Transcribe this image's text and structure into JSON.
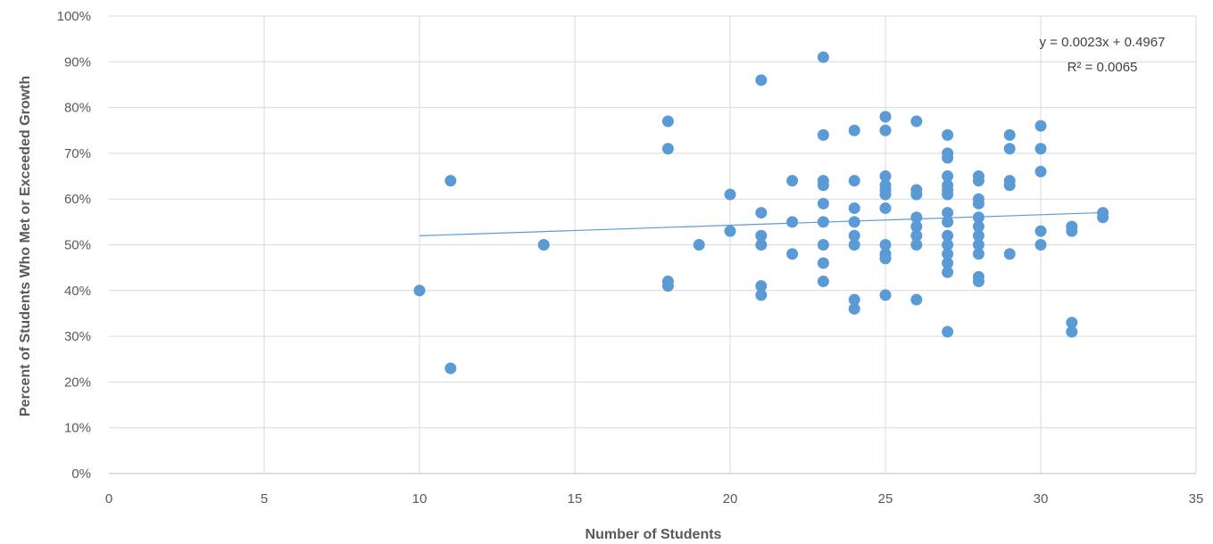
{
  "chart_data": {
    "type": "scatter",
    "title": "",
    "xlabel": "Number of Students",
    "ylabel": "Percent of Students Who Met or Exceeded Growth",
    "xlim": [
      0,
      35
    ],
    "ylim": [
      0,
      1
    ],
    "x_ticks": [
      0,
      5,
      10,
      15,
      20,
      25,
      30,
      35
    ],
    "x_tick_labels": [
      "0",
      "5",
      "10",
      "15",
      "20",
      "25",
      "30",
      "35"
    ],
    "y_ticks": [
      0,
      0.1,
      0.2,
      0.3,
      0.4,
      0.5,
      0.6,
      0.7,
      0.8,
      0.9,
      1.0
    ],
    "y_tick_labels": [
      "0%",
      "10%",
      "20%",
      "30%",
      "40%",
      "50%",
      "60%",
      "70%",
      "80%",
      "90%",
      "100%"
    ],
    "grid": true,
    "legend": "none",
    "marker_color": "#5b9bd5",
    "trendline": {
      "type": "linear",
      "slope": 0.0023,
      "intercept": 0.4967,
      "x_range": [
        10,
        32
      ],
      "equation": "y = 0.0023x + 0.4967",
      "r_squared": "R² = 0.0065"
    },
    "series": [
      {
        "points": [
          [
            10,
            0.4
          ],
          [
            11,
            0.64
          ],
          [
            11,
            0.23
          ],
          [
            14,
            0.5
          ],
          [
            18,
            0.77
          ],
          [
            18,
            0.71
          ],
          [
            18,
            0.42
          ],
          [
            18,
            0.41
          ],
          [
            19,
            0.5
          ],
          [
            20,
            0.61
          ],
          [
            20,
            0.53
          ],
          [
            21,
            0.86
          ],
          [
            21,
            0.57
          ],
          [
            21,
            0.52
          ],
          [
            21,
            0.5
          ],
          [
            21,
            0.41
          ],
          [
            21,
            0.39
          ],
          [
            22,
            0.64
          ],
          [
            22,
            0.55
          ],
          [
            22,
            0.48
          ],
          [
            23,
            0.91
          ],
          [
            23,
            0.74
          ],
          [
            23,
            0.64
          ],
          [
            23,
            0.63
          ],
          [
            23,
            0.59
          ],
          [
            23,
            0.55
          ],
          [
            23,
            0.5
          ],
          [
            23,
            0.46
          ],
          [
            23,
            0.42
          ],
          [
            24,
            0.75
          ],
          [
            24,
            0.64
          ],
          [
            24,
            0.58
          ],
          [
            24,
            0.55
          ],
          [
            24,
            0.52
          ],
          [
            24,
            0.5
          ],
          [
            24,
            0.38
          ],
          [
            24,
            0.36
          ],
          [
            25,
            0.78
          ],
          [
            25,
            0.75
          ],
          [
            25,
            0.65
          ],
          [
            25,
            0.63
          ],
          [
            25,
            0.62
          ],
          [
            25,
            0.61
          ],
          [
            25,
            0.58
          ],
          [
            25,
            0.5
          ],
          [
            25,
            0.48
          ],
          [
            25,
            0.47
          ],
          [
            25,
            0.39
          ],
          [
            26,
            0.77
          ],
          [
            26,
            0.62
          ],
          [
            26,
            0.61
          ],
          [
            26,
            0.56
          ],
          [
            26,
            0.54
          ],
          [
            26,
            0.52
          ],
          [
            26,
            0.5
          ],
          [
            26,
            0.38
          ],
          [
            27,
            0.74
          ],
          [
            27,
            0.7
          ],
          [
            27,
            0.69
          ],
          [
            27,
            0.65
          ],
          [
            27,
            0.63
          ],
          [
            27,
            0.62
          ],
          [
            27,
            0.61
          ],
          [
            27,
            0.57
          ],
          [
            27,
            0.55
          ],
          [
            27,
            0.52
          ],
          [
            27,
            0.5
          ],
          [
            27,
            0.48
          ],
          [
            27,
            0.46
          ],
          [
            27,
            0.44
          ],
          [
            27,
            0.31
          ],
          [
            28,
            0.65
          ],
          [
            28,
            0.64
          ],
          [
            28,
            0.6
          ],
          [
            28,
            0.59
          ],
          [
            28,
            0.56
          ],
          [
            28,
            0.54
          ],
          [
            28,
            0.52
          ],
          [
            28,
            0.5
          ],
          [
            28,
            0.48
          ],
          [
            28,
            0.43
          ],
          [
            28,
            0.42
          ],
          [
            29,
            0.74
          ],
          [
            29,
            0.71
          ],
          [
            29,
            0.64
          ],
          [
            29,
            0.63
          ],
          [
            29,
            0.48
          ],
          [
            30,
            0.76
          ],
          [
            30,
            0.71
          ],
          [
            30,
            0.66
          ],
          [
            30,
            0.53
          ],
          [
            30,
            0.5
          ],
          [
            31,
            0.54
          ],
          [
            31,
            0.53
          ],
          [
            31,
            0.33
          ],
          [
            31,
            0.31
          ],
          [
            32,
            0.57
          ],
          [
            32,
            0.56
          ]
        ]
      }
    ]
  }
}
